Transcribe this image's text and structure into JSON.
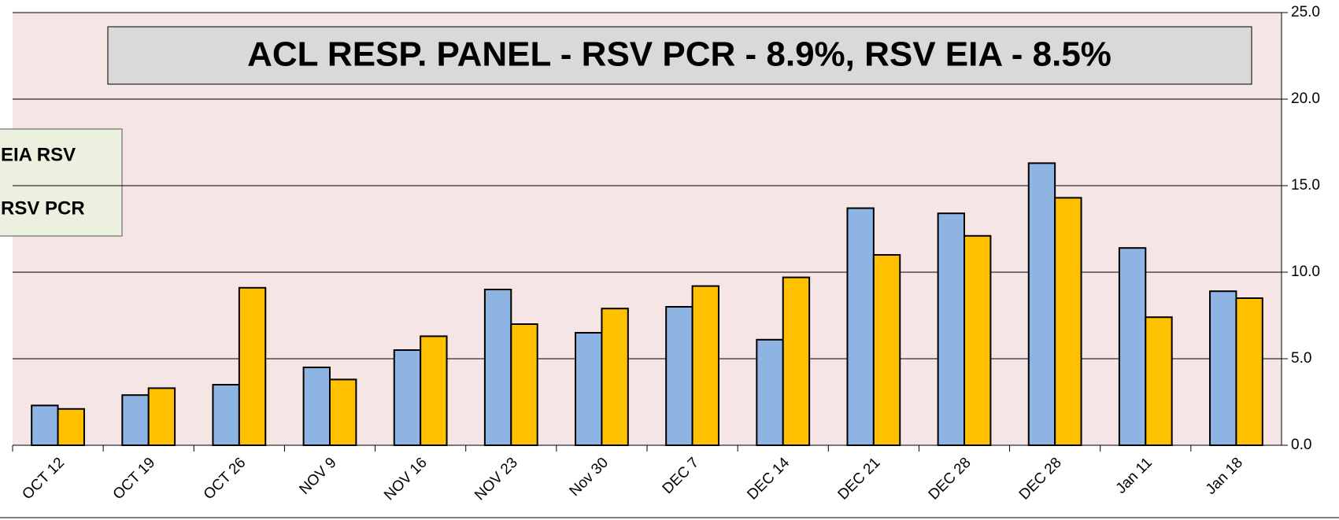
{
  "chart_data": {
    "type": "bar",
    "title": "ACL RESP. PANEL -  RSV PCR - 8.9%, RSV EIA - 8.5%",
    "categories": [
      "OCT 12",
      "OCT 19",
      "OCT 26",
      "NOV 9",
      "NOV 16",
      "NOV 23",
      "Nov 30",
      "DEC 7",
      "DEC 14",
      "DEC 21",
      "DEC 28",
      "DEC 28",
      "Jan 11",
      "Jan 18"
    ],
    "series": [
      {
        "name": "RSV PCR",
        "color": "#8db4e2",
        "values": [
          2.3,
          2.9,
          3.5,
          4.5,
          5.5,
          9.0,
          6.5,
          8.0,
          6.1,
          13.7,
          13.4,
          16.3,
          11.4,
          8.9
        ]
      },
      {
        "name": "EIA RSV",
        "color": "#ffc000",
        "values": [
          2.1,
          3.3,
          9.1,
          3.8,
          6.3,
          7.0,
          7.9,
          9.2,
          9.7,
          11.0,
          12.1,
          14.3,
          7.4,
          8.5
        ]
      }
    ],
    "ylim": [
      0,
      25
    ],
    "yticks": [
      {
        "value": 0,
        "label": "0.0"
      },
      {
        "value": 5,
        "label": "5.0"
      },
      {
        "value": 10,
        "label": "10.0"
      },
      {
        "value": 15,
        "label": "15.0"
      },
      {
        "value": 20,
        "label": "20.0"
      },
      {
        "value": 25,
        "label": "25.0"
      }
    ],
    "grid": true,
    "legend": "left"
  }
}
